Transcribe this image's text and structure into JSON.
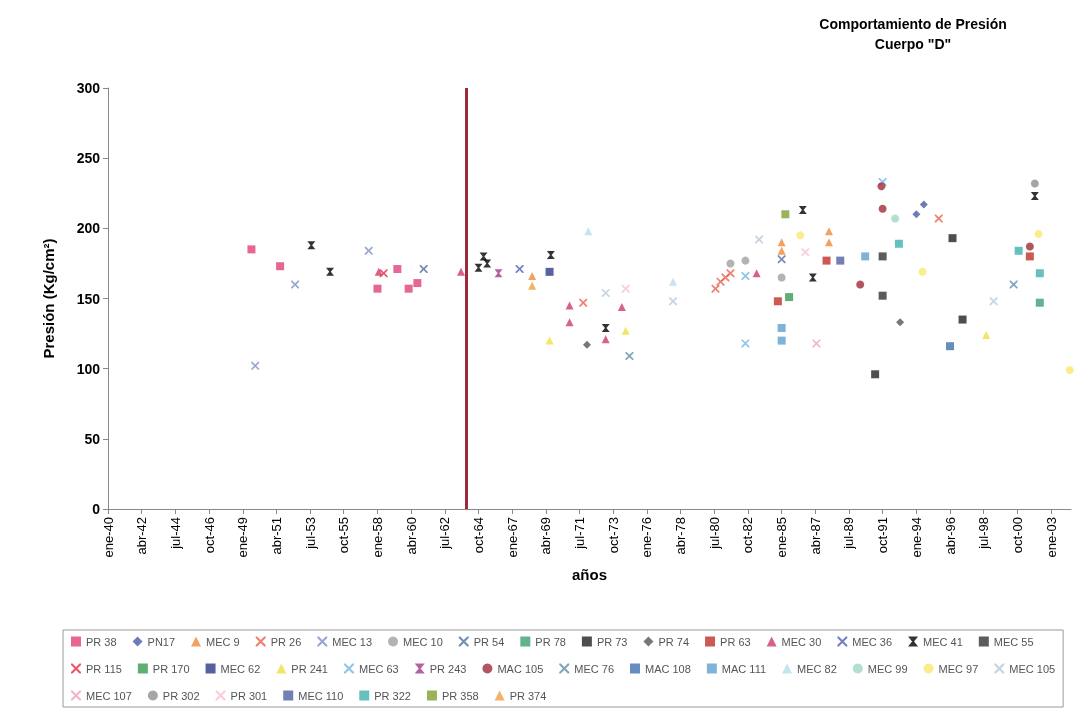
{
  "chart_data": {
    "type": "scatter",
    "title": "Comportamiento de Presión",
    "subtitle": "Cuerpo \"D\"",
    "xlabel": "años",
    "ylabel": "Presión (Kg/cm²)",
    "xlim": [
      "1940-01",
      "2004-05"
    ],
    "ylim": [
      0,
      300
    ],
    "yticks": [
      0,
      50,
      100,
      150,
      200,
      250,
      300
    ],
    "xticks": [
      {
        "value": "1940-01",
        "label": "ene-40"
      },
      {
        "value": "1942-04",
        "label": "abr-42"
      },
      {
        "value": "1944-07",
        "label": "jul-44"
      },
      {
        "value": "1946-10",
        "label": "oct-46"
      },
      {
        "value": "1949-01",
        "label": "ene-49"
      },
      {
        "value": "1951-04",
        "label": "abr-51"
      },
      {
        "value": "1953-07",
        "label": "jul-53"
      },
      {
        "value": "1955-10",
        "label": "oct-55"
      },
      {
        "value": "1958-01",
        "label": "ene-58"
      },
      {
        "value": "1960-04",
        "label": "abr-60"
      },
      {
        "value": "1962-07",
        "label": "jul-62"
      },
      {
        "value": "1964-10",
        "label": "oct-64"
      },
      {
        "value": "1967-01",
        "label": "ene-67"
      },
      {
        "value": "1969-04",
        "label": "abr-69"
      },
      {
        "value": "1971-07",
        "label": "jul-71"
      },
      {
        "value": "1973-10",
        "label": "oct-73"
      },
      {
        "value": "1976-01",
        "label": "ene-76"
      },
      {
        "value": "1978-04",
        "label": "abr-78"
      },
      {
        "value": "1980-07",
        "label": "jul-80"
      },
      {
        "value": "1982-10",
        "label": "oct-82"
      },
      {
        "value": "1985-01",
        "label": "ene-85"
      },
      {
        "value": "1987-04",
        "label": "abr-87"
      },
      {
        "value": "1989-07",
        "label": "jul-89"
      },
      {
        "value": "1991-10",
        "label": "oct-91"
      },
      {
        "value": "1994-01",
        "label": "ene-94"
      },
      {
        "value": "1996-04",
        "label": "abr-96"
      },
      {
        "value": "1998-07",
        "label": "jul-98"
      },
      {
        "value": "2000-10",
        "label": "oct-00"
      },
      {
        "value": "2003-01",
        "label": "ene-03"
      }
    ],
    "grid": false,
    "legend": "bottom",
    "ref_lines": [
      {
        "axis": "x",
        "value": "1963-12",
        "color": "#9c2a3a"
      }
    ],
    "series": [
      {
        "name": "PR 38",
        "color": "#e0407a",
        "marker": "square",
        "x": [
          "1949-08",
          "1951-07",
          "1958-01",
          "1959-05",
          "1960-02",
          "1960-09"
        ],
        "values": [
          185,
          173,
          157,
          171,
          157,
          161
        ]
      },
      {
        "name": "PN17",
        "color": "#4a5aa8",
        "marker": "diamond",
        "x": [
          "1994-01",
          "1994-07"
        ],
        "values": [
          210,
          217
        ]
      },
      {
        "name": "MEC 9",
        "color": "#f08a3c",
        "marker": "triangle",
        "x": [
          "1968-05",
          "1985-01",
          "1985-01",
          "1988-03",
          "1988-03"
        ],
        "values": [
          166,
          190,
          184,
          198,
          190
        ]
      },
      {
        "name": "PR 26",
        "color": "#e8604c",
        "marker": "cross",
        "x": [
          "1971-10",
          "1980-08",
          "1980-12",
          "1981-04",
          "1981-08",
          "1995-07"
        ],
        "values": [
          147,
          157,
          162,
          165,
          168,
          207
        ]
      },
      {
        "name": "MEC 13",
        "color": "#8090c8",
        "marker": "cross",
        "x": [
          "1949-11",
          "1952-07",
          "1957-06"
        ],
        "values": [
          102,
          160,
          184
        ]
      },
      {
        "name": "MEC 10",
        "color": "#a0a0a0",
        "marker": "circle",
        "x": [
          "1981-08",
          "1982-08",
          "1985-01"
        ],
        "values": [
          175,
          177,
          165
        ]
      },
      {
        "name": "PR 54",
        "color": "#5070a0",
        "marker": "cross",
        "x": [
          "1961-02",
          "1985-01"
        ],
        "values": [
          171,
          178
        ]
      },
      {
        "name": "PR 78",
        "color": "#3aa070",
        "marker": "square",
        "x": [
          "2002-04"
        ],
        "values": [
          147
        ]
      },
      {
        "name": "PR 73",
        "color": "#222222",
        "marker": "square",
        "x": [
          "1991-04",
          "1996-06",
          "1997-02"
        ],
        "values": [
          96,
          193,
          135
        ]
      },
      {
        "name": "PR 74",
        "color": "#555555",
        "marker": "diamond",
        "x": [
          "1972-01",
          "1992-12"
        ],
        "values": [
          117,
          133
        ]
      },
      {
        "name": "PR 63",
        "color": "#c0302a",
        "marker": "square",
        "x": [
          "1984-10",
          "1988-01",
          "2001-08"
        ],
        "values": [
          148,
          177,
          180
        ]
      },
      {
        "name": "MEC 30",
        "color": "#d03a6a",
        "marker": "triangle",
        "x": [
          "1958-02",
          "1963-08",
          "1970-11",
          "1970-11",
          "1973-04",
          "1974-05",
          "1983-05"
        ],
        "values": [
          169,
          169,
          145,
          133,
          121,
          144,
          168
        ]
      },
      {
        "name": "MEC 36",
        "color": "#5060b8",
        "marker": "cross",
        "x": [
          "1967-07"
        ],
        "values": [
          171
        ]
      },
      {
        "name": "MEC 41",
        "color": "#000000",
        "marker": "star",
        "x": [
          "1953-08",
          "1954-11",
          "1964-10",
          "1965-02",
          "1965-05",
          "1969-08",
          "1973-04",
          "1986-06",
          "1987-02",
          "2001-12"
        ],
        "values": [
          188,
          169,
          172,
          180,
          175,
          181,
          129,
          213,
          165,
          223
        ]
      },
      {
        "name": "MEC 55",
        "color": "#333333",
        "marker": "square",
        "x": [
          "1991-10",
          "1991-10"
        ],
        "values": [
          180,
          152
        ]
      },
      {
        "name": "PR 115",
        "color": "#e03040",
        "marker": "cross",
        "x": [
          "1958-06"
        ],
        "values": [
          168
        ]
      },
      {
        "name": "PR 170",
        "color": "#3a9a50",
        "marker": "square",
        "x": [
          "1985-07"
        ],
        "values": [
          151
        ]
      },
      {
        "name": "MEC 62",
        "color": "#2a3a8a",
        "marker": "square",
        "x": [
          "1969-07"
        ],
        "values": [
          169
        ]
      },
      {
        "name": "PR 241",
        "color": "#f0e040",
        "marker": "triangle",
        "x": [
          "1969-07",
          "1974-08",
          "1998-09"
        ],
        "values": [
          120,
          127,
          124
        ]
      },
      {
        "name": "MEC 63",
        "color": "#70b8e0",
        "marker": "cross",
        "x": [
          "1982-08",
          "1982-08",
          "1991-10"
        ],
        "values": [
          166,
          118,
          233
        ]
      },
      {
        "name": "PR 243",
        "color": "#a03a8a",
        "marker": "star",
        "x": [
          "1966-02"
        ],
        "values": [
          168
        ]
      },
      {
        "name": "MAC 105",
        "color": "#a02a3a",
        "marker": "circle",
        "x": [
          "1990-04",
          "1991-09",
          "1991-10",
          "2001-08"
        ],
        "values": [
          160,
          230,
          214,
          187
        ]
      },
      {
        "name": "MEC 76",
        "color": "#6090a8",
        "marker": "cross",
        "x": [
          "1974-11",
          "2000-07"
        ],
        "values": [
          109,
          160
        ]
      },
      {
        "name": "MAC 108",
        "color": "#4070b0",
        "marker": "square",
        "x": [
          "1996-04"
        ],
        "values": [
          116
        ]
      },
      {
        "name": "MAC 111",
        "color": "#60a0d0",
        "marker": "square",
        "x": [
          "1985-01",
          "1985-01",
          "1990-08"
        ],
        "values": [
          129,
          120,
          180
        ]
      },
      {
        "name": "MEC 82",
        "color": "#b8dcf0",
        "marker": "triangle",
        "x": [
          "1972-02",
          "1977-10"
        ],
        "values": [
          198,
          162
        ]
      },
      {
        "name": "MEC 99",
        "color": "#a0d8c0",
        "marker": "circle",
        "x": [
          "1992-08"
        ],
        "values": [
          207
        ]
      },
      {
        "name": "MEC 97",
        "color": "#f8e870",
        "marker": "circle",
        "x": [
          "1986-04",
          "1994-06",
          "2002-03",
          "2004-04"
        ],
        "values": [
          195,
          169,
          196,
          99
        ]
      },
      {
        "name": "MEC 105",
        "color": "#b8c8d8",
        "marker": "cross",
        "x": [
          "1973-04",
          "1977-10",
          "1983-07",
          "1999-03"
        ],
        "values": [
          154,
          148,
          192,
          148
        ]
      },
      {
        "name": "MEC 107",
        "color": "#f0a0c0",
        "marker": "cross",
        "x": [
          "1987-05"
        ],
        "values": [
          118
        ]
      },
      {
        "name": "PR 302",
        "color": "#909090",
        "marker": "circle",
        "x": [
          "2001-12"
        ],
        "values": [
          232
        ]
      },
      {
        "name": "PR 301",
        "color": "#f8c0d0",
        "marker": "cross",
        "x": [
          "1974-08",
          "1986-08"
        ],
        "values": [
          157,
          183
        ]
      },
      {
        "name": "MEC 110",
        "color": "#5060a0",
        "marker": "square",
        "x": [
          "1988-12"
        ],
        "values": [
          177
        ]
      },
      {
        "name": "PR 322",
        "color": "#40b0b0",
        "marker": "square",
        "x": [
          "1992-11",
          "2000-11",
          "2002-04"
        ],
        "values": [
          189,
          184,
          168
        ]
      },
      {
        "name": "PR 358",
        "color": "#80a030",
        "marker": "square",
        "x": [
          "1985-04"
        ],
        "values": [
          210
        ]
      },
      {
        "name": "PR 374",
        "color": "#f0a040",
        "marker": "triangle",
        "x": [
          "1968-05"
        ],
        "values": [
          159
        ]
      }
    ]
  }
}
